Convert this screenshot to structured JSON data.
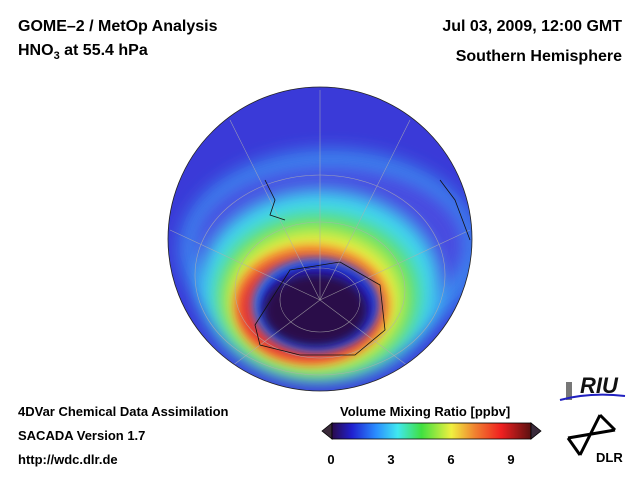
{
  "header": {
    "title_line1": "GOME–2 / MetOp Analysis",
    "title_line2_species": "HNO",
    "title_line2_sub": "3",
    "title_line2_rest": " at 55.4 hPa",
    "date": "Jul 03, 2009, 12:00 GMT",
    "region": "Southern Hemisphere"
  },
  "footer": {
    "line1": "4DVar Chemical Data Assimilation",
    "line2": "SACADA Version 1.7",
    "line3": "http://wdc.dlr.de"
  },
  "colorbar": {
    "label": "Volume Mixing Ratio [ppbv]",
    "ticks": [
      "0",
      "3",
      "6",
      "9"
    ],
    "range": [
      0,
      10
    ],
    "colors": [
      "#2a0a4a",
      "#2020d0",
      "#2a8cff",
      "#40e8f0",
      "#40e040",
      "#f0f040",
      "#f08030",
      "#f02020",
      "#5a1010"
    ]
  },
  "logos": {
    "riu": "RIU",
    "dlr": "DLR"
  }
}
